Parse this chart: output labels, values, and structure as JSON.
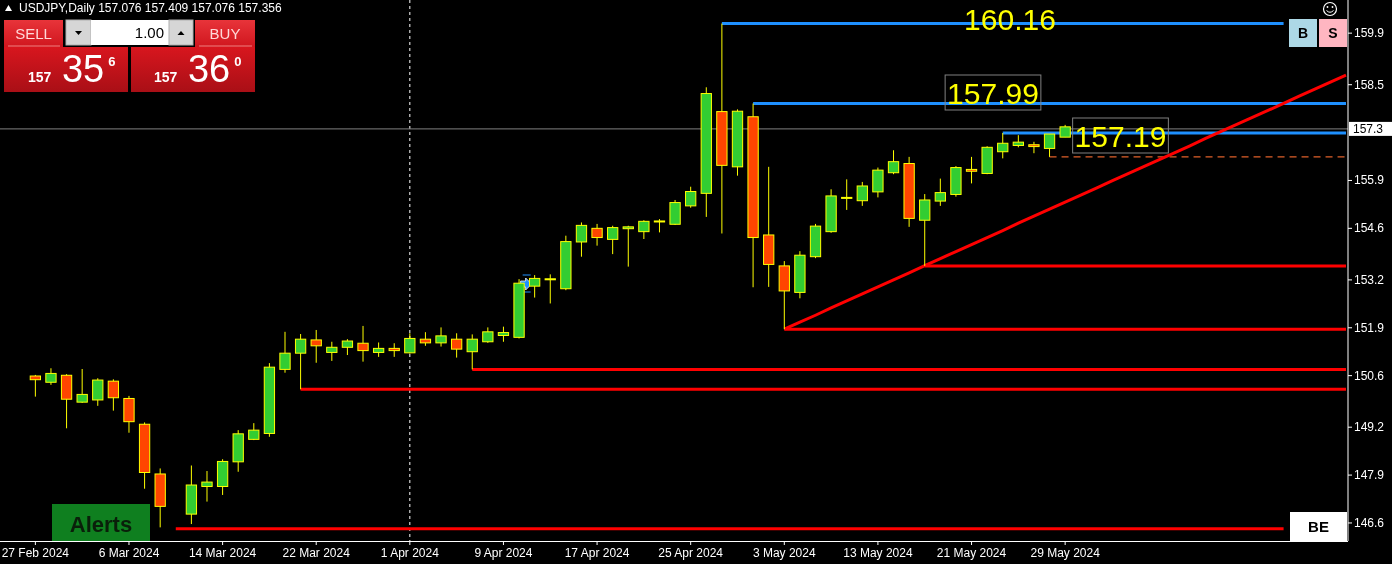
{
  "chart_data": {
    "type": "candlestick",
    "title": "USDJPY,Daily 157.076 157.409 157.076 157.356",
    "categories": [
      "27 Feb 2024",
      null,
      null,
      null,
      null,
      null,
      "6 Mar 2024",
      null,
      null,
      null,
      null,
      null,
      "14 Mar 2024",
      null,
      null,
      null,
      null,
      null,
      "22 Mar 2024",
      null,
      null,
      null,
      null,
      null,
      "1 Apr 2024",
      null,
      null,
      null,
      null,
      null,
      "9 Apr 2024",
      null,
      null,
      null,
      null,
      null,
      "17 Apr 2024",
      null,
      null,
      null,
      null,
      null,
      "25 Apr 2024",
      null,
      null,
      null,
      null,
      null,
      "3 May 2024",
      null,
      null,
      null,
      null,
      null,
      "13 May 2024",
      null,
      null,
      null,
      null,
      null,
      "21 May 2024",
      null,
      null,
      null,
      null,
      null,
      "29 May 2024",
      null,
      null,
      null,
      null,
      null,
      null,
      null,
      null,
      null,
      null,
      null,
      null,
      null,
      null,
      null,
      null,
      null,
      null
    ],
    "ohlc": [
      [
        150.59,
        150.62,
        150.03,
        150.49
      ],
      [
        150.42,
        150.8,
        150.35,
        150.66
      ],
      [
        150.61,
        150.64,
        149.17,
        149.96
      ],
      [
        149.88,
        150.78,
        149.86,
        150.09
      ],
      [
        149.94,
        150.53,
        149.78,
        150.48
      ],
      [
        150.45,
        150.5,
        149.65,
        150.0
      ],
      [
        149.98,
        150.05,
        149.05,
        149.35
      ],
      [
        149.28,
        149.33,
        147.53,
        147.97
      ],
      [
        147.93,
        148.08,
        146.48,
        147.05
      ],
      null,
      [
        146.84,
        148.16,
        146.57,
        147.63
      ],
      [
        147.59,
        148.01,
        147.18,
        147.71
      ],
      [
        147.59,
        148.33,
        147.36,
        148.27
      ],
      [
        148.26,
        149.12,
        147.99,
        149.02
      ],
      [
        148.87,
        149.31,
        148.85,
        149.12
      ],
      [
        149.03,
        150.94,
        148.94,
        150.83
      ],
      [
        150.77,
        151.79,
        150.68,
        151.21
      ],
      [
        151.21,
        151.73,
        150.23,
        151.59
      ],
      [
        151.57,
        151.84,
        150.95,
        151.41
      ],
      [
        151.23,
        151.52,
        151.0,
        151.37
      ],
      [
        151.37,
        151.59,
        151.16,
        151.54
      ],
      [
        151.48,
        151.95,
        150.98,
        151.28
      ],
      [
        151.23,
        151.5,
        151.11,
        151.34
      ],
      [
        151.34,
        151.48,
        151.11,
        151.28
      ],
      [
        151.22,
        151.75,
        151.2,
        151.61
      ],
      [
        151.59,
        151.78,
        151.41,
        151.49
      ],
      [
        151.49,
        151.91,
        151.39,
        151.68
      ],
      [
        151.59,
        151.75,
        151.09,
        151.32
      ],
      [
        151.25,
        151.72,
        150.77,
        151.59
      ],
      [
        151.52,
        151.91,
        151.49,
        151.79
      ],
      [
        151.69,
        151.93,
        151.52,
        151.77
      ],
      [
        151.64,
        153.22,
        151.61,
        153.11
      ],
      [
        153.03,
        153.33,
        152.72,
        153.24
      ],
      [
        153.21,
        153.35,
        152.56,
        153.23
      ],
      [
        152.96,
        154.4,
        152.92,
        154.24
      ],
      [
        154.23,
        154.76,
        153.83,
        154.68
      ],
      [
        154.6,
        154.72,
        154.13,
        154.35
      ],
      [
        154.3,
        154.67,
        153.9,
        154.62
      ],
      [
        154.59,
        154.67,
        153.56,
        154.64
      ],
      [
        154.51,
        154.82,
        154.31,
        154.79
      ],
      [
        154.8,
        154.85,
        154.49,
        154.8
      ],
      [
        154.71,
        155.37,
        154.69,
        155.3
      ],
      [
        155.21,
        155.73,
        155.16,
        155.6
      ],
      [
        155.55,
        158.43,
        154.91,
        158.26
      ],
      [
        157.77,
        160.16,
        154.46,
        156.31
      ],
      [
        156.27,
        157.83,
        156.03,
        157.78
      ],
      [
        157.63,
        157.99,
        153.0,
        154.35
      ],
      [
        154.42,
        156.27,
        153.01,
        153.62
      ],
      [
        153.58,
        153.71,
        151.86,
        152.9
      ],
      [
        152.86,
        153.98,
        152.7,
        153.87
      ],
      [
        153.83,
        154.72,
        153.79,
        154.66
      ],
      [
        154.51,
        155.66,
        154.48,
        155.48
      ],
      [
        155.44,
        155.93,
        155.1,
        155.44
      ],
      [
        155.35,
        155.86,
        155.21,
        155.75
      ],
      [
        155.59,
        156.25,
        155.44,
        156.18
      ],
      [
        156.11,
        156.72,
        156.07,
        156.41
      ],
      [
        156.36,
        156.54,
        154.64,
        154.87
      ],
      [
        154.82,
        155.53,
        153.58,
        155.37
      ],
      [
        155.34,
        155.95,
        155.21,
        155.57
      ],
      [
        155.52,
        156.29,
        155.46,
        156.25
      ],
      [
        156.2,
        156.54,
        155.82,
        156.15
      ],
      [
        156.09,
        156.83,
        156.07,
        156.8
      ],
      [
        156.68,
        157.19,
        156.5,
        156.91
      ],
      [
        156.85,
        157.13,
        156.8,
        156.94
      ],
      [
        156.87,
        156.95,
        156.64,
        156.82
      ],
      [
        156.77,
        157.16,
        156.54,
        157.16
      ],
      [
        157.076,
        157.409,
        157.076,
        157.356
      ],
      null,
      null,
      null,
      null,
      null,
      null,
      null,
      null,
      null,
      null,
      null,
      null,
      null,
      null,
      null,
      null,
      null,
      null
    ],
    "colors": [
      "#ff4500",
      "#32cd32",
      "#ff4500",
      "#32cd32",
      "#32cd32",
      "#ff4500",
      "#ff4500",
      "#ff4500",
      "#ff4500",
      null,
      "#32cd32",
      "#32cd32",
      "#32cd32",
      "#32cd32",
      "#32cd32",
      "#32cd32",
      "#32cd32",
      "#32cd32",
      "#ff4500",
      "#32cd32",
      "#32cd32",
      "#ff4500",
      "#32cd32",
      "#ff4500",
      "#32cd32",
      "#ff4500",
      "#32cd32",
      "#ff4500",
      "#32cd32",
      "#32cd32",
      "#32cd32",
      "#32cd32",
      "#32cd32",
      "#32cd32",
      "#32cd32",
      "#32cd32",
      "#ff4500",
      "#32cd32",
      "#32cd32",
      "#32cd32",
      "#32cd32",
      "#32cd32",
      "#32cd32",
      "#32cd32",
      "#ff4500",
      "#32cd32",
      "#ff4500",
      "#ff4500",
      "#ff4500",
      "#32cd32",
      "#32cd32",
      "#32cd32",
      "#32cd32",
      "#32cd32",
      "#32cd32",
      "#32cd32",
      "#ff4500",
      "#32cd32",
      "#32cd32",
      "#32cd32",
      "#ff4500",
      "#32cd32",
      "#32cd32",
      "#32cd32",
      "#ff4500",
      "#32cd32",
      "#32cd32",
      null,
      null,
      null,
      null,
      null,
      null,
      null,
      null,
      null,
      null,
      null,
      null,
      null,
      null,
      null,
      null,
      null,
      null
    ],
    "ylim": [
      146.11,
      160.8
    ],
    "yticks": [
      146.6,
      147.9,
      149.2,
      150.6,
      151.9,
      153.2,
      154.6,
      155.9,
      158.5,
      159.9
    ],
    "series": [
      {
        "type": "line",
        "color": "#1e90ff",
        "values": [
          null,
          null,
          null,
          null,
          null,
          null,
          null,
          null,
          null,
          null,
          null,
          null,
          null,
          null,
          null,
          null,
          null,
          null,
          null,
          null,
          null,
          null,
          null,
          null,
          null,
          null,
          null,
          null,
          null,
          null,
          null,
          null,
          null,
          null,
          null,
          null,
          null,
          null,
          null,
          null,
          null,
          null,
          null,
          null,
          160.16,
          160.16,
          160.16,
          160.16,
          160.16,
          160.16,
          160.16,
          160.16,
          160.16,
          160.16,
          160.16,
          160.16,
          160.16,
          160.16,
          160.16,
          160.16,
          160.16,
          160.16,
          160.16,
          160.16,
          160.16,
          160.16,
          160.16,
          160.16,
          160.16,
          160.16,
          160.16,
          160.16,
          160.16,
          160.16,
          160.16,
          160.16,
          160.16,
          160.16,
          160.16,
          160.16,
          160.16,
          null,
          null,
          null,
          null
        ]
      },
      {
        "type": "line",
        "color": "#1e90ff",
        "values": [
          null,
          null,
          null,
          null,
          null,
          null,
          null,
          null,
          null,
          null,
          null,
          null,
          null,
          null,
          null,
          null,
          null,
          null,
          null,
          null,
          null,
          null,
          null,
          null,
          null,
          null,
          null,
          null,
          null,
          null,
          null,
          null,
          null,
          null,
          null,
          null,
          null,
          null,
          null,
          null,
          null,
          null,
          null,
          null,
          null,
          null,
          157.99,
          157.99,
          157.99,
          157.99,
          157.99,
          157.99,
          157.99,
          157.99,
          157.99,
          157.99,
          157.99,
          157.99,
          157.99,
          157.99,
          157.99,
          157.99,
          157.99,
          157.99,
          157.99,
          157.99,
          157.99,
          157.99,
          157.99,
          157.99,
          157.99,
          157.99,
          157.99,
          157.99,
          157.99,
          157.99,
          157.99,
          157.99,
          157.99,
          157.99,
          157.99,
          157.99,
          157.99,
          157.99,
          157.99
        ]
      },
      {
        "type": "line",
        "color": "#1e90ff",
        "values": [
          null,
          null,
          null,
          null,
          null,
          null,
          null,
          null,
          null,
          null,
          null,
          null,
          null,
          null,
          null,
          null,
          null,
          null,
          null,
          null,
          null,
          null,
          null,
          null,
          null,
          null,
          null,
          null,
          null,
          null,
          null,
          null,
          null,
          null,
          null,
          null,
          null,
          null,
          null,
          null,
          null,
          null,
          null,
          null,
          null,
          null,
          null,
          null,
          null,
          null,
          null,
          null,
          null,
          null,
          null,
          null,
          null,
          null,
          null,
          null,
          null,
          null,
          157.19,
          157.19,
          157.19,
          157.19,
          157.19,
          157.19,
          157.19,
          157.19,
          157.19,
          157.19,
          157.19,
          157.19,
          157.19,
          157.19,
          157.19,
          157.19,
          157.19,
          157.19,
          157.19,
          157.19,
          157.19,
          157.19,
          157.19
        ]
      },
      {
        "type": "line",
        "color": "#e0602a",
        "line_style": "dashed",
        "values": [
          null,
          null,
          null,
          null,
          null,
          null,
          null,
          null,
          null,
          null,
          null,
          null,
          null,
          null,
          null,
          null,
          null,
          null,
          null,
          null,
          null,
          null,
          null,
          null,
          null,
          null,
          null,
          null,
          null,
          null,
          null,
          null,
          null,
          null,
          null,
          null,
          null,
          null,
          null,
          null,
          null,
          null,
          null,
          null,
          null,
          null,
          null,
          null,
          null,
          null,
          null,
          null,
          null,
          null,
          null,
          null,
          null,
          null,
          null,
          null,
          null,
          null,
          null,
          null,
          null,
          156.54,
          156.54,
          156.54,
          156.54,
          156.54,
          156.54,
          156.54,
          156.54,
          156.54,
          156.54,
          156.54,
          156.54,
          156.54,
          156.54,
          156.54,
          156.54,
          156.54,
          156.54,
          156.54,
          156.54
        ]
      },
      {
        "type": "line",
        "color": "#ff0000",
        "values": [
          null,
          null,
          null,
          null,
          null,
          null,
          null,
          null,
          null,
          null,
          null,
          null,
          null,
          null,
          null,
          null,
          null,
          null,
          null,
          null,
          null,
          null,
          null,
          null,
          null,
          null,
          null,
          null,
          null,
          null,
          null,
          null,
          null,
          null,
          null,
          null,
          null,
          null,
          null,
          null,
          null,
          null,
          null,
          null,
          null,
          null,
          null,
          null,
          null,
          null,
          null,
          null,
          null,
          null,
          null,
          null,
          null,
          153.58,
          153.58,
          153.58,
          153.58,
          153.58,
          153.58,
          153.58,
          153.58,
          153.58,
          153.58,
          153.58,
          153.58,
          153.58,
          153.58,
          153.58,
          153.58,
          153.58,
          153.58,
          153.58,
          153.58,
          153.58,
          153.58,
          153.58,
          153.58,
          153.58,
          153.58,
          153.58,
          153.58
        ]
      },
      {
        "type": "line",
        "color": "#ff0000",
        "values": [
          null,
          null,
          null,
          null,
          null,
          null,
          null,
          null,
          null,
          null,
          null,
          null,
          null,
          null,
          null,
          null,
          null,
          null,
          null,
          null,
          null,
          null,
          null,
          null,
          null,
          null,
          null,
          null,
          null,
          null,
          null,
          null,
          null,
          null,
          null,
          null,
          null,
          null,
          null,
          null,
          null,
          null,
          null,
          null,
          null,
          null,
          null,
          null,
          151.86,
          151.86,
          151.86,
          151.86,
          151.86,
          151.86,
          151.86,
          151.86,
          151.86,
          151.86,
          151.86,
          151.86,
          151.86,
          151.86,
          151.86,
          151.86,
          151.86,
          151.86,
          151.86,
          151.86,
          151.86,
          151.86,
          151.86,
          151.86,
          151.86,
          151.86,
          151.86,
          151.86,
          151.86,
          151.86,
          151.86,
          151.86,
          151.86,
          151.86,
          151.86,
          151.86,
          151.86
        ]
      },
      {
        "type": "line",
        "color": "#ff0000",
        "values": [
          null,
          null,
          null,
          null,
          null,
          null,
          null,
          null,
          null,
          null,
          null,
          null,
          null,
          null,
          null,
          null,
          null,
          null,
          null,
          null,
          null,
          null,
          null,
          null,
          null,
          null,
          null,
          null,
          150.77,
          150.77,
          150.77,
          150.77,
          150.77,
          150.77,
          150.77,
          150.77,
          150.77,
          150.77,
          150.77,
          150.77,
          150.77,
          150.77,
          150.77,
          150.77,
          150.77,
          150.77,
          150.77,
          150.77,
          150.77,
          150.77,
          150.77,
          150.77,
          150.77,
          150.77,
          150.77,
          150.77,
          150.77,
          150.77,
          150.77,
          150.77,
          150.77,
          150.77,
          150.77,
          150.77,
          150.77,
          150.77,
          150.77,
          150.77,
          150.77,
          150.77,
          150.77,
          150.77,
          150.77,
          150.77,
          150.77,
          150.77,
          150.77,
          150.77,
          150.77,
          150.77,
          150.77,
          150.77,
          150.77,
          150.77,
          150.77
        ]
      },
      {
        "type": "line",
        "color": "#ff0000",
        "values": [
          null,
          null,
          null,
          null,
          null,
          null,
          null,
          null,
          null,
          null,
          null,
          null,
          null,
          null,
          null,
          null,
          null,
          150.23,
          150.23,
          150.23,
          150.23,
          150.23,
          150.23,
          150.23,
          150.23,
          150.23,
          150.23,
          150.23,
          150.23,
          150.23,
          150.23,
          150.23,
          150.23,
          150.23,
          150.23,
          150.23,
          150.23,
          150.23,
          150.23,
          150.23,
          150.23,
          150.23,
          150.23,
          150.23,
          150.23,
          150.23,
          150.23,
          150.23,
          150.23,
          150.23,
          150.23,
          150.23,
          150.23,
          150.23,
          150.23,
          150.23,
          150.23,
          150.23,
          150.23,
          150.23,
          150.23,
          150.23,
          150.23,
          150.23,
          150.23,
          150.23,
          150.23,
          150.23,
          150.23,
          150.23,
          150.23,
          150.23,
          150.23,
          150.23,
          150.23,
          150.23,
          150.23,
          150.23,
          150.23,
          150.23,
          150.23,
          150.23,
          150.23,
          150.23,
          150.23
        ]
      },
      {
        "type": "line",
        "color": "#ff0000",
        "values": [
          null,
          null,
          null,
          null,
          null,
          null,
          null,
          null,
          null,
          146.44,
          146.44,
          146.44,
          146.44,
          146.44,
          146.44,
          146.44,
          146.44,
          146.44,
          146.44,
          146.44,
          146.44,
          146.44,
          146.44,
          146.44,
          146.44,
          146.44,
          146.44,
          146.44,
          146.44,
          146.44,
          146.44,
          146.44,
          146.44,
          146.44,
          146.44,
          146.44,
          146.44,
          146.44,
          146.44,
          146.44,
          146.44,
          146.44,
          146.44,
          146.44,
          146.44,
          146.44,
          146.44,
          146.44,
          146.44,
          146.44,
          146.44,
          146.44,
          146.44,
          146.44,
          146.44,
          146.44,
          146.44,
          146.44,
          146.44,
          146.44,
          146.44,
          146.44,
          146.44,
          146.44,
          146.44,
          146.44,
          146.44,
          146.44,
          146.44,
          146.44,
          146.44,
          146.44,
          146.44,
          146.44,
          146.44,
          146.44,
          146.44,
          146.44,
          146.44,
          146.44,
          146.44,
          null,
          null,
          null,
          null
        ]
      },
      {
        "type": "line",
        "color": "#ff0000",
        "values": [
          null,
          null,
          null,
          null,
          null,
          null,
          null,
          null,
          null,
          null,
          null,
          null,
          null,
          null,
          null,
          null,
          null,
          null,
          null,
          null,
          null,
          null,
          null,
          null,
          null,
          null,
          null,
          null,
          null,
          null,
          null,
          null,
          null,
          null,
          null,
          null,
          null,
          null,
          null,
          null,
          null,
          null,
          null,
          null,
          null,
          null,
          null,
          null,
          151.86,
          152.05,
          152.24,
          152.44,
          152.63,
          152.82,
          153.01,
          153.2,
          153.39,
          153.59,
          153.78,
          153.97,
          154.16,
          154.35,
          154.54,
          154.74,
          154.93,
          155.12,
          155.31,
          155.5,
          155.69,
          155.89,
          156.08,
          156.27,
          156.46,
          156.65,
          156.84,
          157.04,
          157.23,
          157.42,
          157.61,
          157.8,
          157.99,
          158.19,
          158.38,
          158.57,
          158.76
        ]
      }
    ],
    "ref_lines": [
      {
        "axis": "x",
        "value": "1 Apr 2024",
        "color": "#ffffff",
        "line_style": "dotted"
      },
      {
        "axis": "y",
        "value": 157.3,
        "label": "157.3",
        "color": "#808080"
      }
    ],
    "annotations": [
      "160.16",
      "157.99",
      "157.19",
      "SELL",
      "1.00",
      "BUY",
      "157 35$^{6}$",
      "157 36$^{0}$",
      "Alerts",
      "B",
      "S",
      "BE"
    ]
  }
}
